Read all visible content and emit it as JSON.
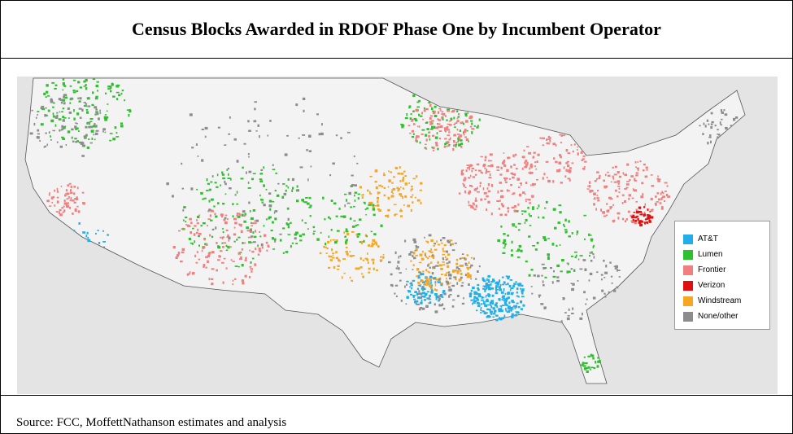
{
  "title": "Census Blocks Awarded in RDOF Phase One by Incumbent Operator",
  "legend": [
    {
      "label": "AT&T",
      "color": "#22aee8"
    },
    {
      "label": "Lumen",
      "color": "#2ec02e"
    },
    {
      "label": "Frontier",
      "color": "#f08080"
    },
    {
      "label": "Verizon",
      "color": "#e01010"
    },
    {
      "label": "Windstream",
      "color": "#f5a623"
    },
    {
      "label": "None/other",
      "color": "#8c8c8c"
    }
  ],
  "source": "Source: FCC, MoffettNathanson estimates and analysis"
}
